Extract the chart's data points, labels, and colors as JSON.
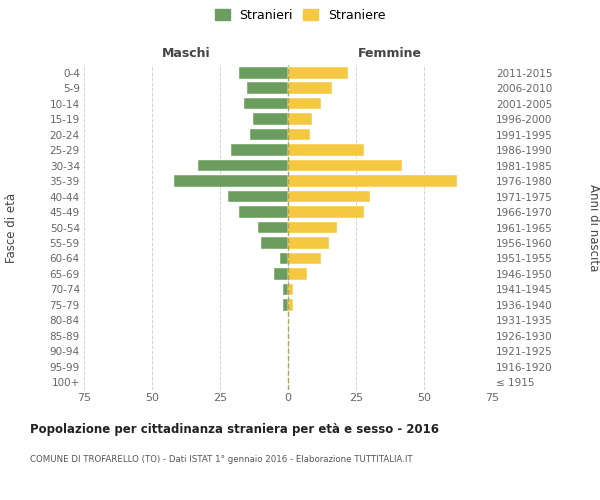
{
  "age_groups": [
    "100+",
    "95-99",
    "90-94",
    "85-89",
    "80-84",
    "75-79",
    "70-74",
    "65-69",
    "60-64",
    "55-59",
    "50-54",
    "45-49",
    "40-44",
    "35-39",
    "30-34",
    "25-29",
    "20-24",
    "15-19",
    "10-14",
    "5-9",
    "0-4"
  ],
  "birth_years": [
    "≤ 1915",
    "1916-1920",
    "1921-1925",
    "1926-1930",
    "1931-1935",
    "1936-1940",
    "1941-1945",
    "1946-1950",
    "1951-1955",
    "1956-1960",
    "1961-1965",
    "1966-1970",
    "1971-1975",
    "1976-1980",
    "1981-1985",
    "1986-1990",
    "1991-1995",
    "1996-2000",
    "2001-2005",
    "2006-2010",
    "2011-2015"
  ],
  "maschi": [
    0,
    0,
    0,
    0,
    0,
    2,
    2,
    5,
    3,
    10,
    11,
    18,
    22,
    42,
    33,
    21,
    14,
    13,
    16,
    15,
    18
  ],
  "femmine": [
    0,
    0,
    0,
    0,
    0,
    2,
    2,
    7,
    12,
    15,
    18,
    28,
    30,
    62,
    42,
    28,
    8,
    9,
    12,
    16,
    22
  ],
  "color_maschi": "#6b9e5e",
  "color_femmine": "#f5c842",
  "title": "Popolazione per cittadinanza straniera per età e sesso - 2016",
  "subtitle": "COMUNE DI TROFARELLO (TO) - Dati ISTAT 1° gennaio 2016 - Elaborazione TUTTITALIA.IT",
  "xlabel_left": "Maschi",
  "xlabel_right": "Femmine",
  "ylabel_left": "Fasce di età",
  "ylabel_right": "Anni di nascita",
  "legend_maschi": "Stranieri",
  "legend_femmine": "Straniere",
  "xlim": 75,
  "background_color": "#ffffff",
  "grid_color": "#cccccc"
}
